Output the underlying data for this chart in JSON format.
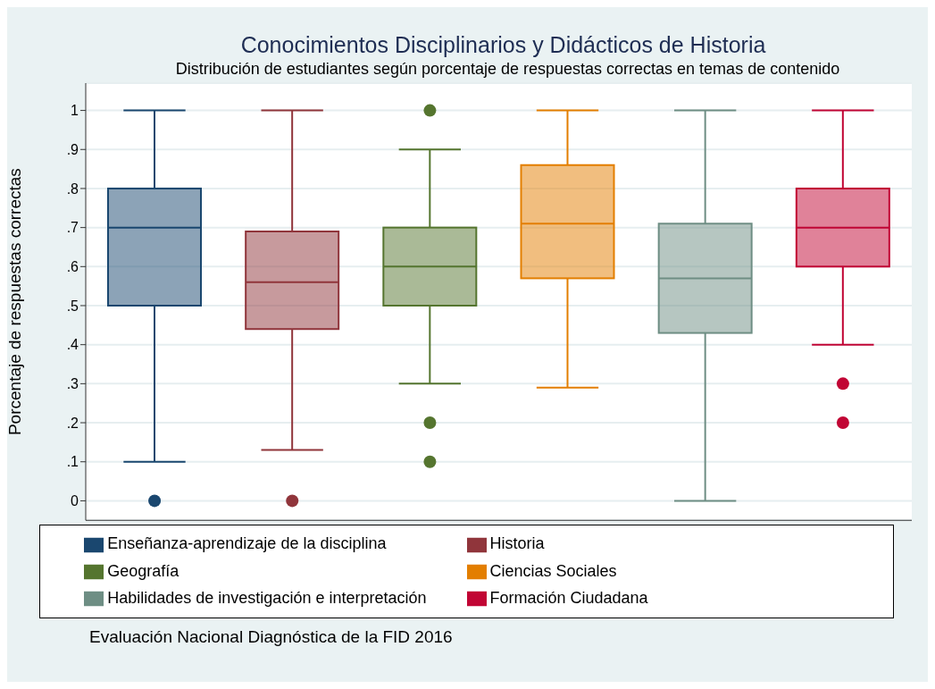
{
  "chart_data": {
    "type": "box",
    "title": "Conocimientos Disciplinarios y Didácticos de Historia",
    "subtitle": "Distribución de estudiantes según porcentaje de respuestas correctas en temas de contenido",
    "ylabel": "Porcentaje de respuestas correctas",
    "annotations": [
      "Evaluación Nacional Diagnóstica de la FID 2016"
    ],
    "categories": [
      null,
      null,
      null,
      null,
      null,
      null
    ],
    "series": [
      {
        "name": "Enseñanza-aprendizaje de la disciplina",
        "color": "#1a476f",
        "boxes": [
          {
            "low": 0.1,
            "q1": 0.5,
            "median": 0.7,
            "q3": 0.8,
            "high": 1,
            "outliers": [
              0
            ]
          },
          null,
          null,
          null,
          null,
          null
        ]
      },
      {
        "name": "Historia",
        "color": "#90353b",
        "boxes": [
          null,
          {
            "low": 0.13,
            "q1": 0.44,
            "median": 0.56,
            "q3": 0.69,
            "high": 1,
            "outliers": [
              0
            ]
          },
          null,
          null,
          null,
          null
        ]
      },
      {
        "name": "Geografía",
        "color": "#55752f",
        "boxes": [
          null,
          null,
          {
            "low": 0.3,
            "q1": 0.5,
            "median": 0.6,
            "q3": 0.7,
            "high": 0.9,
            "outliers": [
              1,
              0.2,
              0.1
            ]
          },
          null,
          null,
          null
        ]
      },
      {
        "name": "Ciencias Sociales",
        "color": "#e37e00",
        "boxes": [
          null,
          null,
          null,
          {
            "low": 0.29,
            "q1": 0.57,
            "median": 0.71,
            "q3": 0.86,
            "high": 1
          },
          null,
          null
        ]
      },
      {
        "name": "Habilidades de investigación e interpretación",
        "color": "#6e8e84",
        "boxes": [
          null,
          null,
          null,
          null,
          {
            "low": 0,
            "q1": 0.43,
            "median": 0.57,
            "q3": 0.71,
            "high": 1
          },
          null
        ]
      },
      {
        "name": "Formación Ciudadana",
        "color": "#c10534",
        "boxes": [
          null,
          null,
          null,
          null,
          null,
          {
            "low": 0.4,
            "q1": 0.6,
            "median": 0.7,
            "q3": 0.8,
            "high": 1,
            "outliers": [
              0.3,
              0.2
            ]
          }
        ]
      }
    ],
    "ylim": [
      -0.05,
      1.07
    ],
    "yticks": [
      0,
      {
        "value": 0.1,
        "label": ".1"
      },
      {
        "value": 0.2,
        "label": ".2"
      },
      {
        "value": 0.3,
        "label": ".3"
      },
      {
        "value": 0.4,
        "label": ".4"
      },
      {
        "value": 0.5,
        "label": ".5"
      },
      {
        "value": 0.6,
        "label": ".6"
      },
      {
        "value": 0.7,
        "label": ".7"
      },
      {
        "value": 0.8,
        "label": ".8"
      },
      {
        "value": 0.9,
        "label": ".9"
      },
      1
    ],
    "grid": "y",
    "legend": "bottom"
  }
}
